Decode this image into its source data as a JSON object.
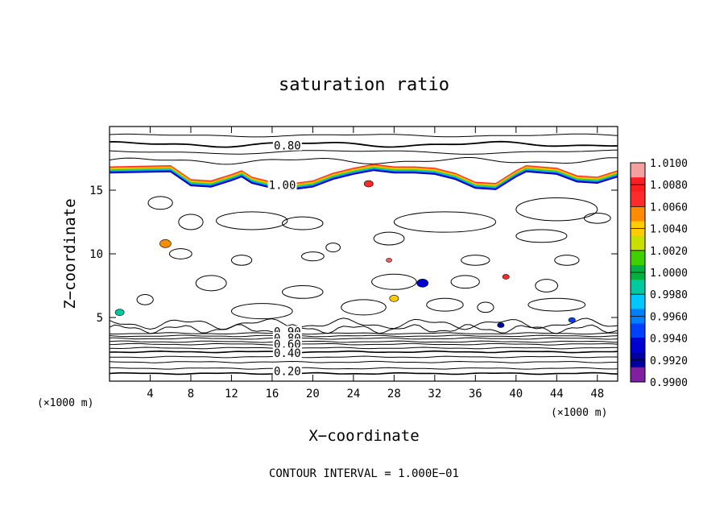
{
  "chart_data": {
    "type": "contour",
    "title": "saturation ratio",
    "xlabel": "X−coordinate",
    "ylabel": "Z−coordinate",
    "x_unit_left": "(×1000 m)",
    "x_unit_right": "(×1000 m)",
    "footer": "CONTOUR INTERVAL = 1.000E−01",
    "xlim": [
      0,
      50
    ],
    "ylim": [
      0,
      20
    ],
    "x_ticks": [
      4,
      8,
      12,
      16,
      20,
      24,
      28,
      32,
      36,
      40,
      44,
      48
    ],
    "y_ticks": [
      5,
      10,
      15
    ],
    "x_tick_labels": [
      "4",
      "8",
      "12",
      "16",
      "20",
      "24",
      "28",
      "32",
      "36",
      "40",
      "44",
      "48"
    ],
    "y_tick_labels": [
      "5",
      "10",
      "15"
    ],
    "contour_labels": [
      {
        "text": "0.80",
        "x": 17.5,
        "z": 18.5
      },
      {
        "text": "1.00",
        "x": 17.0,
        "z": 15.4
      },
      {
        "text": "0.90",
        "x": 17.5,
        "z": 3.9
      },
      {
        "text": "0.80",
        "x": 17.5,
        "z": 3.4
      },
      {
        "text": "0.60",
        "x": 17.5,
        "z": 2.9
      },
      {
        "text": "0.40",
        "x": 17.5,
        "z": 2.2
      },
      {
        "text": "0.20",
        "x": 17.5,
        "z": 0.8
      }
    ],
    "colorbar": {
      "labels": [
        "1.0100",
        "1.0080",
        "1.0060",
        "1.0040",
        "1.0020",
        "1.0000",
        "0.9980",
        "0.9960",
        "0.9940",
        "0.9920",
        "0.9900"
      ],
      "colors": [
        "#f4a0a0",
        "#ff1e1e",
        "#ff2a2a",
        "#ff8c00",
        "#ffcc00",
        "#c8e000",
        "#40d000",
        "#00b040",
        "#00c8a0",
        "#00c8ff",
        "#0080ff",
        "#0040ff",
        "#0000d0",
        "#0000a0",
        "#8020a0"
      ]
    }
  }
}
